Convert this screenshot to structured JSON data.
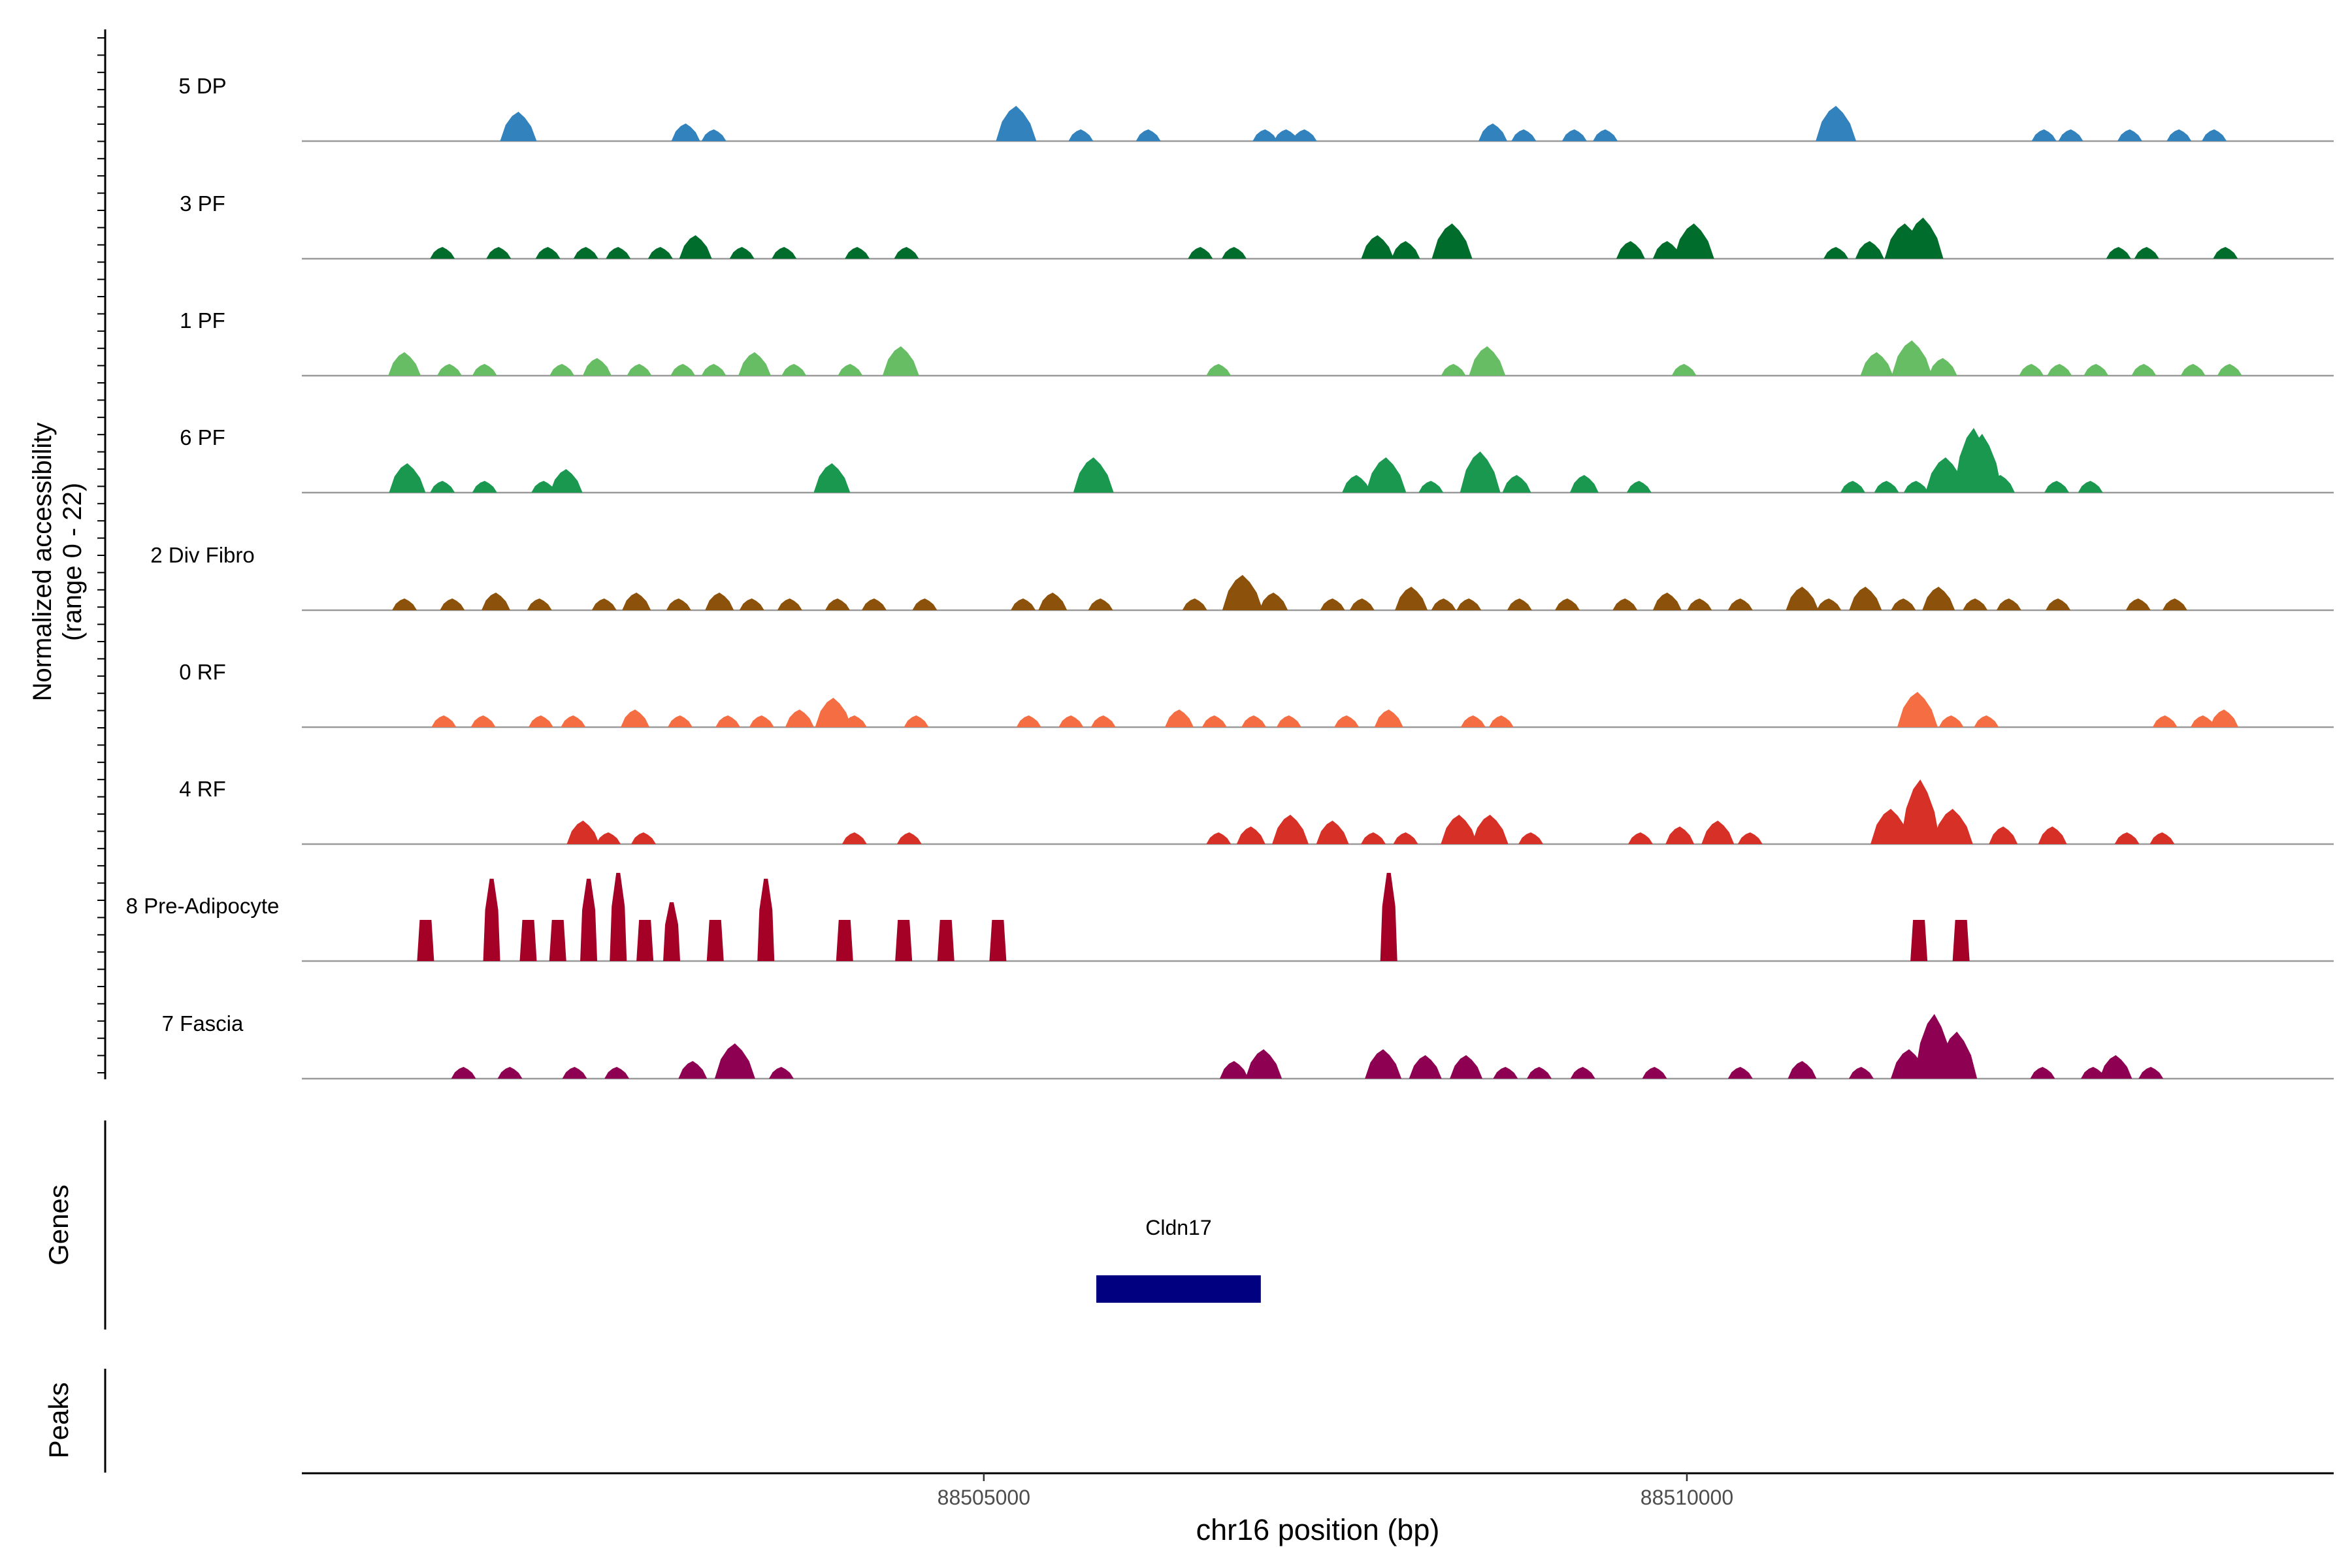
{
  "chart_data": {
    "type": "area",
    "title": "",
    "xlabel": "chr16 position (bp)",
    "ylabel": "Normalized accessibility",
    "ylabel_range": "(range 0 - 22)",
    "xlim": [
      88500150,
      88514600
    ],
    "ylim": [
      0,
      22
    ],
    "xticks": [
      88505000,
      88510000
    ],
    "xtick_labels": [
      "88505000",
      "88510000"
    ],
    "tracks": [
      {
        "name": "5 DP",
        "color": "#3182bd",
        "peaks": [
          [
            88501690,
            5
          ],
          [
            88502880,
            3
          ],
          [
            88503080,
            2
          ],
          [
            88505230,
            6
          ],
          [
            88505690,
            2
          ],
          [
            88506170,
            2
          ],
          [
            88507000,
            2
          ],
          [
            88507150,
            2
          ],
          [
            88507280,
            2
          ],
          [
            88508620,
            3
          ],
          [
            88508840,
            2
          ],
          [
            88509200,
            2
          ],
          [
            88509420,
            2
          ],
          [
            88511060,
            6
          ],
          [
            88512540,
            2
          ],
          [
            88512730,
            2
          ],
          [
            88513150,
            2
          ],
          [
            88513500,
            2
          ],
          [
            88513750,
            2
          ]
        ]
      },
      {
        "name": "3 PF",
        "color": "#006d2c",
        "peaks": [
          [
            88501150,
            2
          ],
          [
            88501550,
            2
          ],
          [
            88501900,
            2
          ],
          [
            88502170,
            2
          ],
          [
            88502400,
            2
          ],
          [
            88502700,
            2
          ],
          [
            88502950,
            4
          ],
          [
            88503280,
            2
          ],
          [
            88503580,
            2
          ],
          [
            88504100,
            2
          ],
          [
            88504450,
            2
          ],
          [
            88506540,
            2
          ],
          [
            88506780,
            2
          ],
          [
            88507800,
            4
          ],
          [
            88508000,
            3
          ],
          [
            88508330,
            6
          ],
          [
            88509600,
            3
          ],
          [
            88509860,
            3
          ],
          [
            88510050,
            6
          ],
          [
            88511060,
            2
          ],
          [
            88511300,
            3
          ],
          [
            88511550,
            6
          ],
          [
            88511680,
            7
          ],
          [
            88513070,
            2
          ],
          [
            88513270,
            2
          ],
          [
            88513830,
            2
          ]
        ]
      },
      {
        "name": "1 PF",
        "color": "#66bd63",
        "peaks": [
          [
            88500880,
            4
          ],
          [
            88501200,
            2
          ],
          [
            88501450,
            2
          ],
          [
            88502000,
            2
          ],
          [
            88502250,
            3
          ],
          [
            88502550,
            2
          ],
          [
            88502860,
            2
          ],
          [
            88503080,
            2
          ],
          [
            88503370,
            4
          ],
          [
            88503650,
            2
          ],
          [
            88504050,
            2
          ],
          [
            88504410,
            5
          ],
          [
            88506670,
            2
          ],
          [
            88508340,
            2
          ],
          [
            88508580,
            5
          ],
          [
            88509980,
            2
          ],
          [
            88511350,
            4
          ],
          [
            88511600,
            6
          ],
          [
            88511820,
            3
          ],
          [
            88512450,
            2
          ],
          [
            88512650,
            2
          ],
          [
            88512910,
            2
          ],
          [
            88513250,
            2
          ],
          [
            88513600,
            2
          ],
          [
            88513860,
            2
          ]
        ]
      },
      {
        "name": "6 PF",
        "color": "#1a9850",
        "peaks": [
          [
            88500900,
            5
          ],
          [
            88501150,
            2
          ],
          [
            88501450,
            2
          ],
          [
            88501870,
            2
          ],
          [
            88502030,
            4
          ],
          [
            88503920,
            5
          ],
          [
            88505780,
            6
          ],
          [
            88507650,
            3
          ],
          [
            88507860,
            6
          ],
          [
            88508180,
            2
          ],
          [
            88508530,
            7
          ],
          [
            88508790,
            3
          ],
          [
            88509270,
            3
          ],
          [
            88509660,
            2
          ],
          [
            88511180,
            2
          ],
          [
            88511420,
            2
          ],
          [
            88511630,
            2
          ],
          [
            88511840,
            6
          ],
          [
            88512040,
            11
          ],
          [
            88512100,
            10
          ],
          [
            88512230,
            3
          ],
          [
            88512630,
            2
          ],
          [
            88512870,
            2
          ]
        ]
      },
      {
        "name": "2 Div Fibro",
        "color": "#8c510a",
        "peaks": [
          [
            88500880,
            2
          ],
          [
            88501220,
            2
          ],
          [
            88501530,
            3
          ],
          [
            88501840,
            2
          ],
          [
            88502300,
            2
          ],
          [
            88502530,
            3
          ],
          [
            88502830,
            2
          ],
          [
            88503120,
            3
          ],
          [
            88503350,
            2
          ],
          [
            88503620,
            2
          ],
          [
            88503960,
            2
          ],
          [
            88504220,
            2
          ],
          [
            88504580,
            2
          ],
          [
            88505280,
            2
          ],
          [
            88505490,
            3
          ],
          [
            88505830,
            2
          ],
          [
            88506500,
            2
          ],
          [
            88506840,
            6
          ],
          [
            88507060,
            3
          ],
          [
            88507480,
            2
          ],
          [
            88507690,
            2
          ],
          [
            88508040,
            4
          ],
          [
            88508270,
            2
          ],
          [
            88508450,
            2
          ],
          [
            88508810,
            2
          ],
          [
            88509150,
            2
          ],
          [
            88509560,
            2
          ],
          [
            88509860,
            3
          ],
          [
            88510090,
            2
          ],
          [
            88510380,
            2
          ],
          [
            88510820,
            4
          ],
          [
            88511010,
            2
          ],
          [
            88511270,
            4
          ],
          [
            88511540,
            2
          ],
          [
            88511790,
            4
          ],
          [
            88512050,
            2
          ],
          [
            88512290,
            2
          ],
          [
            88512640,
            2
          ],
          [
            88513210,
            2
          ],
          [
            88513470,
            2
          ]
        ]
      },
      {
        "name": "0 RF",
        "color": "#f46d43",
        "peaks": [
          [
            88501160,
            2
          ],
          [
            88501440,
            2
          ],
          [
            88501850,
            2
          ],
          [
            88502080,
            2
          ],
          [
            88502520,
            3
          ],
          [
            88502840,
            2
          ],
          [
            88503180,
            2
          ],
          [
            88503420,
            2
          ],
          [
            88503690,
            3
          ],
          [
            88503930,
            5
          ],
          [
            88504080,
            2
          ],
          [
            88504520,
            2
          ],
          [
            88505320,
            2
          ],
          [
            88505620,
            2
          ],
          [
            88505850,
            2
          ],
          [
            88506390,
            3
          ],
          [
            88506640,
            2
          ],
          [
            88506920,
            2
          ],
          [
            88507170,
            2
          ],
          [
            88507580,
            2
          ],
          [
            88507880,
            3
          ],
          [
            88508480,
            2
          ],
          [
            88508680,
            2
          ],
          [
            88511640,
            6
          ],
          [
            88511880,
            2
          ],
          [
            88512130,
            2
          ],
          [
            88513400,
            2
          ],
          [
            88513670,
            2
          ],
          [
            88513820,
            3
          ]
        ]
      },
      {
        "name": "4 RF",
        "color": "#d73027",
        "peaks": [
          [
            88502150,
            4
          ],
          [
            88502330,
            2
          ],
          [
            88502580,
            2
          ],
          [
            88504080,
            2
          ],
          [
            88504470,
            2
          ],
          [
            88506670,
            2
          ],
          [
            88506900,
            3
          ],
          [
            88507180,
            5
          ],
          [
            88507480,
            4
          ],
          [
            88507770,
            2
          ],
          [
            88508000,
            2
          ],
          [
            88508380,
            5
          ],
          [
            88508600,
            5
          ],
          [
            88508890,
            2
          ],
          [
            88509670,
            2
          ],
          [
            88509950,
            3
          ],
          [
            88510220,
            4
          ],
          [
            88510450,
            2
          ],
          [
            88511450,
            6
          ],
          [
            88511660,
            11
          ],
          [
            88511890,
            6
          ],
          [
            88512250,
            3
          ],
          [
            88512600,
            3
          ],
          [
            88513130,
            2
          ],
          [
            88513380,
            2
          ]
        ]
      },
      {
        "name": "8 Pre-Adipocyte",
        "color": "#a50026",
        "peaks": [
          [
            88501030,
            7
          ],
          [
            88501500,
            14
          ],
          [
            88501760,
            7
          ],
          [
            88501970,
            7
          ],
          [
            88502190,
            14
          ],
          [
            88502400,
            15
          ],
          [
            88502590,
            7
          ],
          [
            88502780,
            10
          ],
          [
            88503090,
            7
          ],
          [
            88503450,
            14
          ],
          [
            88504010,
            7
          ],
          [
            88504430,
            7
          ],
          [
            88504730,
            7
          ],
          [
            88505100,
            7
          ],
          [
            88507880,
            15
          ],
          [
            88511650,
            7
          ],
          [
            88511950,
            7
          ]
        ]
      },
      {
        "name": "7 Fascia",
        "color": "#8e0152",
        "peaks": [
          [
            88501300,
            2
          ],
          [
            88501630,
            2
          ],
          [
            88502090,
            2
          ],
          [
            88502390,
            2
          ],
          [
            88502930,
            3
          ],
          [
            88503230,
            6
          ],
          [
            88503560,
            2
          ],
          [
            88506780,
            3
          ],
          [
            88506990,
            5
          ],
          [
            88507840,
            5
          ],
          [
            88508140,
            4
          ],
          [
            88508430,
            4
          ],
          [
            88508710,
            2
          ],
          [
            88508950,
            2
          ],
          [
            88509260,
            2
          ],
          [
            88509770,
            2
          ],
          [
            88510380,
            2
          ],
          [
            88510820,
            3
          ],
          [
            88511240,
            2
          ],
          [
            88511580,
            5
          ],
          [
            88511760,
            11
          ],
          [
            88511920,
            8
          ],
          [
            88512530,
            2
          ],
          [
            88512890,
            2
          ],
          [
            88513050,
            4
          ],
          [
            88513300,
            2
          ]
        ]
      }
    ],
    "genes": [
      {
        "name": "Cldn17",
        "start": 88505800,
        "end": 88506970,
        "color": "#000080"
      }
    ],
    "peaks_track": [],
    "panels": [
      "Genes",
      "Peaks"
    ]
  }
}
